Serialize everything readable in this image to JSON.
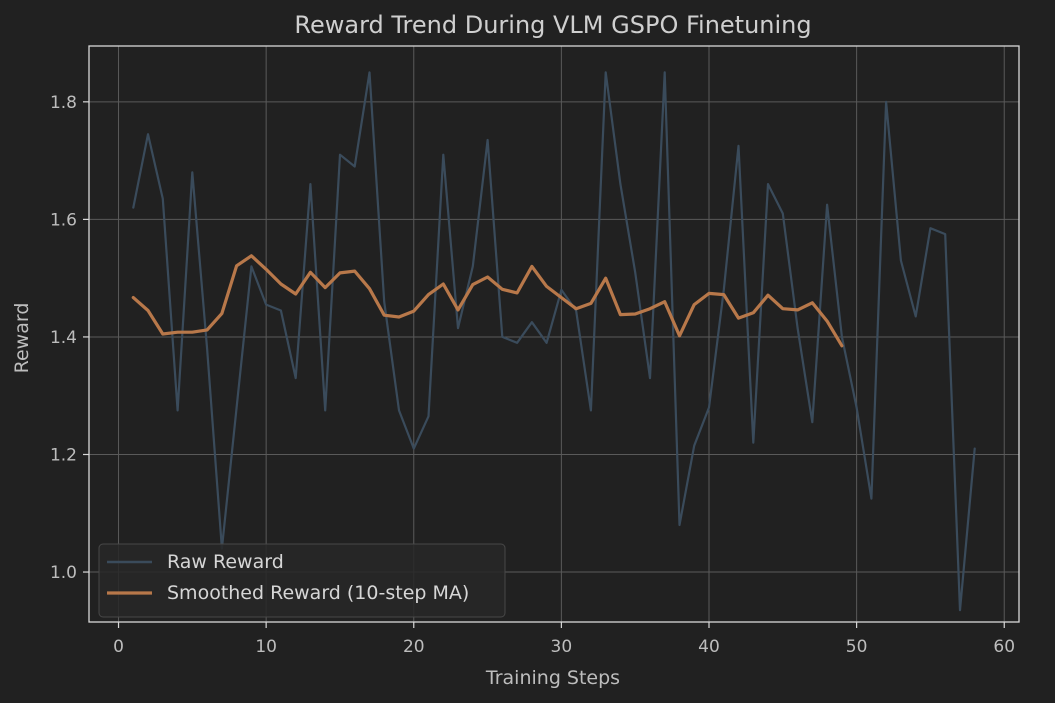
{
  "chart_data": {
    "type": "line",
    "title": "Reward Trend During VLM GSPO Finetuning",
    "xlabel": "Training Steps",
    "ylabel": "Reward",
    "xlim": [
      -2,
      61
    ],
    "ylim": [
      0.915,
      1.895
    ],
    "xticks": [
      0,
      10,
      20,
      30,
      40,
      50,
      60
    ],
    "yticks": [
      1.0,
      1.2,
      1.4,
      1.6,
      1.8
    ],
    "ytick_labels": [
      "1.0",
      "1.2",
      "1.4",
      "1.6",
      "1.8"
    ],
    "grid": true,
    "legend_position": "lower-left",
    "colors": {
      "background": "#212121",
      "raw": "#3a4b5b",
      "smoothed": "#b8784a"
    },
    "series": [
      {
        "name": "Raw Reward",
        "x": [
          1,
          2,
          3,
          4,
          5,
          6,
          7,
          8,
          9,
          10,
          11,
          12,
          13,
          14,
          15,
          16,
          17,
          18,
          19,
          20,
          21,
          22,
          23,
          24,
          25,
          26,
          27,
          28,
          29,
          30,
          31,
          32,
          33,
          34,
          35,
          36,
          37,
          38,
          39,
          40,
          41,
          42,
          43,
          44,
          45,
          46,
          47,
          48,
          49,
          50,
          51,
          52,
          53,
          54,
          55,
          56,
          57,
          58
        ],
        "values": [
          1.62,
          1.745,
          1.635,
          1.275,
          1.68,
          1.38,
          1.04,
          1.28,
          1.52,
          1.455,
          1.445,
          1.33,
          1.66,
          1.275,
          1.71,
          1.69,
          1.85,
          1.46,
          1.275,
          1.21,
          1.265,
          1.71,
          1.415,
          1.52,
          1.735,
          1.4,
          1.39,
          1.425,
          1.39,
          1.48,
          1.445,
          1.275,
          1.85,
          1.66,
          1.51,
          1.33,
          1.85,
          1.08,
          1.215,
          1.28,
          1.48,
          1.725,
          1.22,
          1.66,
          1.61,
          1.415,
          1.255,
          1.625,
          1.4,
          1.28,
          1.125,
          1.8,
          1.53,
          1.435,
          1.585,
          1.575,
          0.935,
          1.21
        ]
      },
      {
        "name": "Smoothed Reward (10-step MA)",
        "x": [
          1,
          2,
          3,
          4,
          5,
          6,
          7,
          8,
          9,
          10,
          11,
          12,
          13,
          14,
          15,
          16,
          17,
          18,
          19,
          20,
          21,
          22,
          23,
          24,
          25,
          26,
          27,
          28,
          29,
          30,
          31,
          32,
          33,
          34,
          35,
          36,
          37,
          38,
          39,
          40,
          41,
          42,
          43,
          44,
          45,
          46,
          47,
          48,
          49
        ],
        "values": [
          1.467,
          1.445,
          1.405,
          1.408,
          1.408,
          1.412,
          1.44,
          1.521,
          1.538,
          1.515,
          1.49,
          1.473,
          1.51,
          1.484,
          1.509,
          1.512,
          1.482,
          1.437,
          1.434,
          1.444,
          1.472,
          1.49,
          1.446,
          1.489,
          1.502,
          1.481,
          1.475,
          1.52,
          1.486,
          1.467,
          1.448,
          1.457,
          1.5,
          1.438,
          1.439,
          1.448,
          1.46,
          1.402,
          1.455,
          1.474,
          1.472,
          1.432,
          1.441,
          1.471,
          1.448,
          1.446,
          1.458,
          1.427,
          1.385
        ]
      }
    ]
  }
}
